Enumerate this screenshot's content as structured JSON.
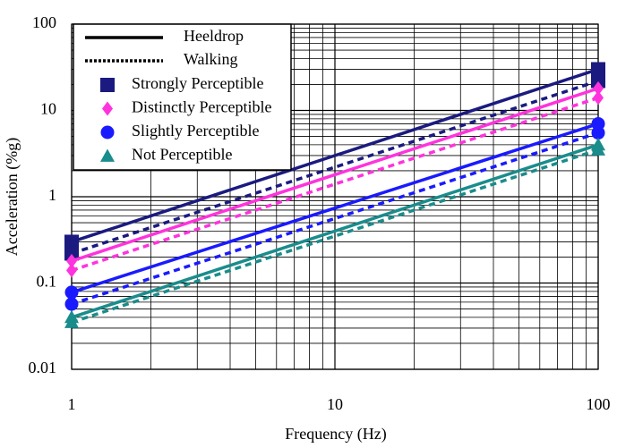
{
  "chart_data": {
    "type": "line",
    "x_label": "Frequency (Hz)",
    "y_label": "Acceleration (%g)",
    "log_x": true,
    "log_y": true,
    "grid": true,
    "xlim": [
      1,
      100
    ],
    "ylim": [
      0.01,
      100
    ],
    "xticks": [
      1,
      10,
      100
    ],
    "xminorticks": [
      2,
      3,
      4,
      5,
      6,
      7,
      8,
      9,
      20,
      30,
      40,
      50,
      60,
      70,
      80,
      90
    ],
    "yticks": [
      0.01,
      0.1,
      1,
      10,
      100
    ],
    "yminorticks": [
      0.02,
      0.03,
      0.04,
      0.05,
      0.06,
      0.07,
      0.08,
      0.09,
      0.2,
      0.3,
      0.4,
      0.5,
      0.6,
      0.7,
      0.8,
      0.9,
      2,
      3,
      4,
      5,
      6,
      7,
      8,
      9,
      20,
      30,
      40,
      50,
      60,
      70,
      80,
      90
    ],
    "line_styles": [
      "Heeldrop",
      "Walking"
    ],
    "legend": "upper left",
    "x": [
      1,
      100
    ],
    "series": [
      {
        "name": "Strongly Perceptible",
        "color": "#1a1a80",
        "marker": "square",
        "heeldrop": [
          0.3,
          30
        ],
        "walking": [
          0.22,
          22
        ]
      },
      {
        "name": "Distinctly Perceptible",
        "color": "#ff33dd",
        "marker": "diamond",
        "heeldrop": [
          0.18,
          18
        ],
        "walking": [
          0.14,
          14
        ]
      },
      {
        "name": "Slightly Perceptible",
        "color": "#1a1aff",
        "marker": "circle",
        "heeldrop": [
          0.078,
          7
        ],
        "walking": [
          0.057,
          5.5
        ]
      },
      {
        "name": "Not Perceptible",
        "color": "#1a8c8c",
        "marker": "triangle",
        "heeldrop": [
          0.04,
          4
        ],
        "walking": [
          0.035,
          3.5
        ]
      }
    ]
  }
}
